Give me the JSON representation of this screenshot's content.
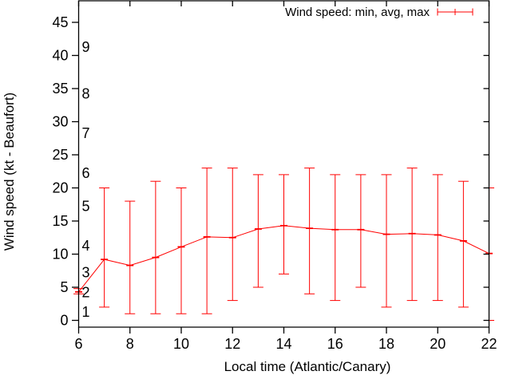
{
  "chart_data": {
    "type": "line",
    "title": "",
    "legend_label": "Wind speed: min, avg, max",
    "legend_style": "errorbar",
    "legend_position": "top-right",
    "xlabel": "Local time (Atlantic/Canary)",
    "ylabel": "Wind speed (kt - Beaufort)",
    "x": [
      6,
      7,
      8,
      9,
      10,
      11,
      12,
      13,
      14,
      15,
      16,
      17,
      18,
      19,
      20,
      21,
      22
    ],
    "series": [
      {
        "name": "min",
        "values": [
          4,
          2,
          1,
          1,
          1,
          1,
          3,
          5,
          7,
          4,
          3,
          5,
          2,
          3,
          3,
          2,
          0
        ]
      },
      {
        "name": "avg",
        "values": [
          4.3,
          9.2,
          8.3,
          9.5,
          11.1,
          12.6,
          12.5,
          13.8,
          14.3,
          13.9,
          13.7,
          13.7,
          13.0,
          13.1,
          12.9,
          12.0,
          10.1
        ]
      },
      {
        "name": "max",
        "values": [
          4.8,
          20,
          18,
          21,
          20,
          23,
          23,
          22,
          22,
          23,
          22,
          22,
          22,
          23,
          22,
          21,
          20
        ]
      }
    ],
    "x_ticks": [
      6,
      8,
      10,
      12,
      14,
      16,
      18,
      20,
      22
    ],
    "y_ticks": [
      0,
      5,
      10,
      15,
      20,
      25,
      30,
      35,
      40,
      45
    ],
    "beaufort_scale": [
      {
        "label": "1",
        "kt": 1
      },
      {
        "label": "2",
        "kt": 4
      },
      {
        "label": "3",
        "kt": 7
      },
      {
        "label": "4",
        "kt": 11
      },
      {
        "label": "5",
        "kt": 17
      },
      {
        "label": "6",
        "kt": 22
      },
      {
        "label": "7",
        "kt": 28
      },
      {
        "label": "8",
        "kt": 34
      },
      {
        "label": "9",
        "kt": 41
      }
    ],
    "xlim": [
      6,
      22
    ],
    "ylim": [
      -1.0,
      48.3
    ],
    "grid": false,
    "line_color": "#ff0000",
    "axis_color": "#000000",
    "background": "#ffffff"
  }
}
